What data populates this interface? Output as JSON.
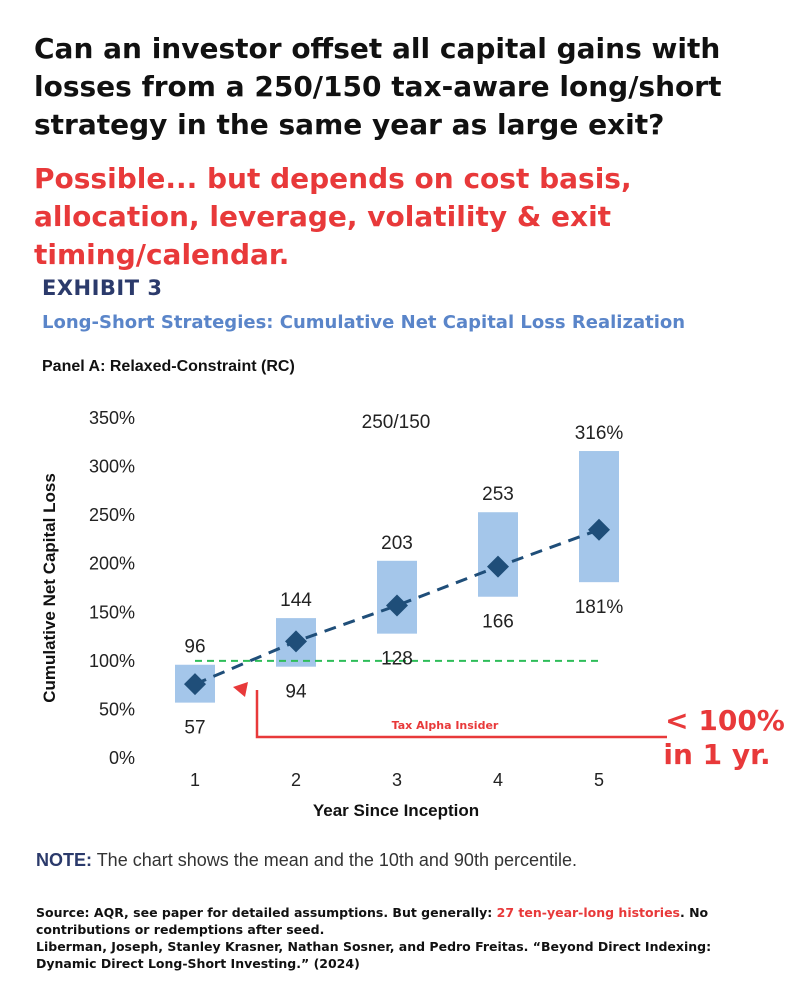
{
  "headline": "Can an investor offset all capital gains with losses from a 250/150 tax-aware long/short strategy in the same year as large exit?",
  "answer": "Possible... but depends on cost basis, allocation, leverage, volatility & exit timing/calendar.",
  "exhibit": {
    "label": "EXHIBIT 3",
    "subtitle": "Long-Short Strategies: Cumulative Net Capital Loss Realization",
    "panel": "Panel A: Relaxed-Constraint (RC)"
  },
  "annotation": {
    "tag": "Tax Alpha Insider",
    "callout_line1": "< 100%",
    "callout_line2": "in 1 yr."
  },
  "note": {
    "label": "NOTE:",
    "text": "The chart shows the mean and the 10th and 90th percentile."
  },
  "source": {
    "prefix": "Source: AQR, see paper for detailed assumptions. But generally: ",
    "highlight": "27 ten-year-long histories",
    "suffix": ". No contributions or redemptions after seed.",
    "citation": "Liberman, Joseph, Stanley Krasner, Nathan Sosner, and Pedro Freitas. “Beyond Direct Indexing: Dynamic Direct Long-Short Investing.” (2024)"
  },
  "colors": {
    "navy": "#2b3a6b",
    "exhibit_blue": "#5a85c9",
    "bar": "#a4c6ea",
    "marker": "#1f4e79",
    "reference_line": "#2ebd59",
    "red": "#e8393a"
  },
  "chart_data": {
    "type": "range-bar",
    "series_label": "250/150",
    "xlabel": "Year Since Inception",
    "ylabel": "Cumulative Net Capital Loss",
    "x": [
      1,
      2,
      3,
      4,
      5
    ],
    "p10": [
      57,
      94,
      128,
      166,
      181
    ],
    "p90": [
      96,
      144,
      203,
      253,
      316
    ],
    "mean": [
      76,
      120,
      157,
      197,
      235
    ],
    "p10_labels": [
      "57",
      "94",
      "128",
      "166",
      "181%"
    ],
    "p90_labels": [
      "96",
      "144",
      "203",
      "253",
      "316%"
    ],
    "yticks": [
      "0%",
      "50%",
      "100%",
      "150%",
      "200%",
      "250%",
      "300%",
      "350%"
    ],
    "ylim": [
      0,
      350
    ],
    "reference_line": 100,
    "grid": false,
    "legend": "none"
  }
}
